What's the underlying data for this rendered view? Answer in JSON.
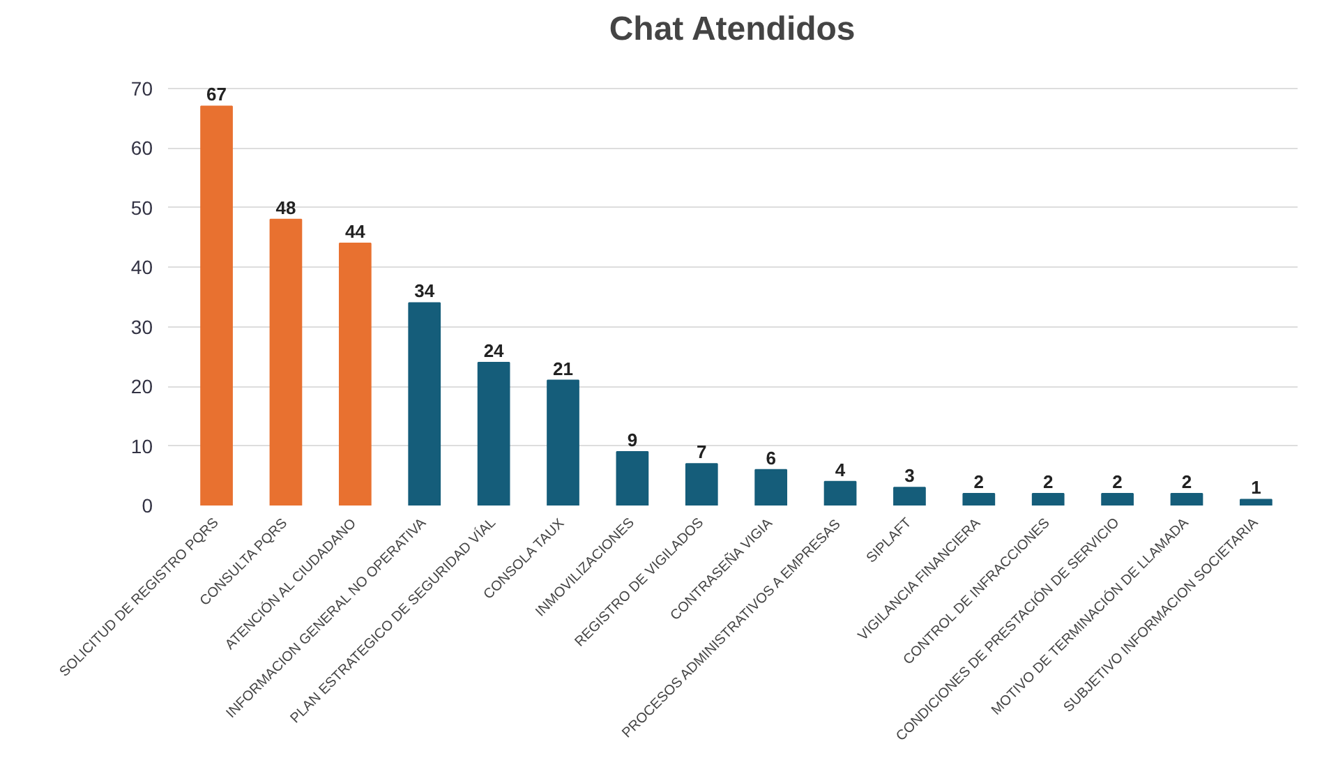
{
  "chart_data": {
    "type": "bar",
    "title": "Chat Atendidos",
    "categories": [
      "SOLICITUD DE REGISTRO PQRS",
      "CONSULTA PQRS",
      "ATENCIÓN AL CIUDADANO",
      "INFORMACION GENERAL NO OPERATIVA",
      "PLAN ESTRATEGICO DE SEGURIDAD VÍAL",
      "CONSOLA TAUX",
      "INMOVILIZACIONES",
      "REGISTRO DE VIGILADOS",
      "CONTRASEÑA VIGIA",
      "PROCESOS ADMINISTRATIVOS A EMPRESAS",
      "SIPLAFT",
      "VIGILANCIA FINANCIERA",
      "CONTROL DE INFRACCIONES",
      "CONDICIONES DE PRESTACIÓN DE SERVICIO",
      "MOTIVO DE TERMINACIÓN DE LLAMADA",
      "SUBJETIVO INFORMACION SOCIETARIA"
    ],
    "values": [
      67,
      48,
      44,
      34,
      24,
      21,
      9,
      7,
      6,
      4,
      3,
      2,
      2,
      2,
      2,
      1
    ],
    "colors": [
      "#e87130",
      "#e87130",
      "#e87130",
      "#155d7a",
      "#155d7a",
      "#155d7a",
      "#155d7a",
      "#155d7a",
      "#155d7a",
      "#155d7a",
      "#155d7a",
      "#155d7a",
      "#155d7a",
      "#155d7a",
      "#155d7a",
      "#155d7a"
    ],
    "ylim": [
      0,
      70
    ],
    "yticks": [
      0,
      10,
      20,
      30,
      40,
      50,
      60,
      70
    ],
    "grid": "y",
    "data_labels": true
  }
}
